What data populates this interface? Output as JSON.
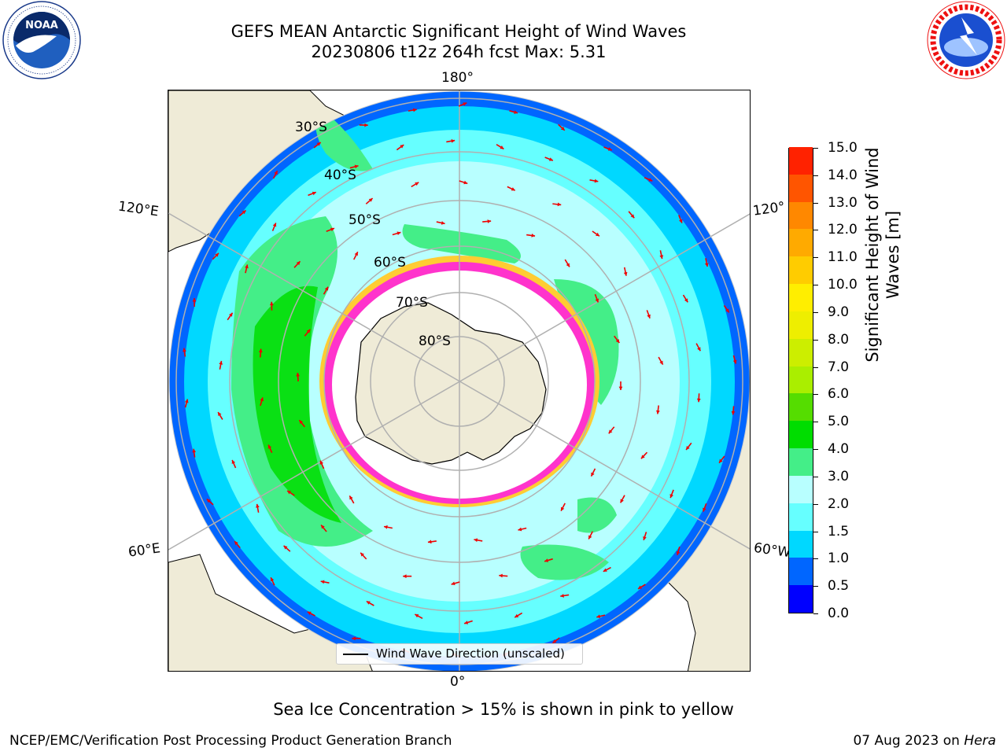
{
  "title_line1": "GEFS MEAN Antarctic Significant Height of Wind Waves",
  "title_line2": "20230806 t12z 264h fcst   Max: 5.31",
  "longitude_labels": {
    "top": "180°",
    "bottom": "0°",
    "upper_left": "120°E",
    "upper_right": "120°",
    "lower_left": "60°E",
    "lower_right": "60°W"
  },
  "latitude_labels": [
    "30°S",
    "40°S",
    "50°S",
    "60°S",
    "70°S",
    "80°S"
  ],
  "legend_label": "Wind Wave Direction (unscaled)",
  "colorbar": {
    "title_line1": "Significant Height of Wind",
    "title_line2": "Waves [m]",
    "ticks": [
      "0.0",
      "0.5",
      "1.0",
      "1.5",
      "2.0",
      "3.0",
      "4.0",
      "5.0",
      "6.0",
      "7.0",
      "8.0",
      "9.0",
      "10.0",
      "11.0",
      "12.0",
      "13.0",
      "14.0",
      "15.0"
    ],
    "colors": [
      "#0000ff",
      "#0066ff",
      "#00d8ff",
      "#66ffff",
      "#b8ffff",
      "#44ee88",
      "#00dd00",
      "#55dd00",
      "#aaee00",
      "#ccee00",
      "#eeee00",
      "#ffee00",
      "#ffcc00",
      "#ffaa00",
      "#ff8800",
      "#ff5500",
      "#ff2200"
    ]
  },
  "ice_note": "Sea Ice Concentration > 15% is shown in pink to yellow",
  "footer_left": "NCEP/EMC/Verification Post Processing Product Generation Branch",
  "footer_date": "07 Aug 2023 on",
  "footer_host": "Hera",
  "colors": {
    "land": "#efebd7",
    "arrow": "#ee0000",
    "grid": "#b0b0b0",
    "ice_pink": "#ff33cc",
    "ice_yellow": "#ffcc33"
  },
  "logos": {
    "left": "NOAA",
    "right": "National Weather Service"
  }
}
